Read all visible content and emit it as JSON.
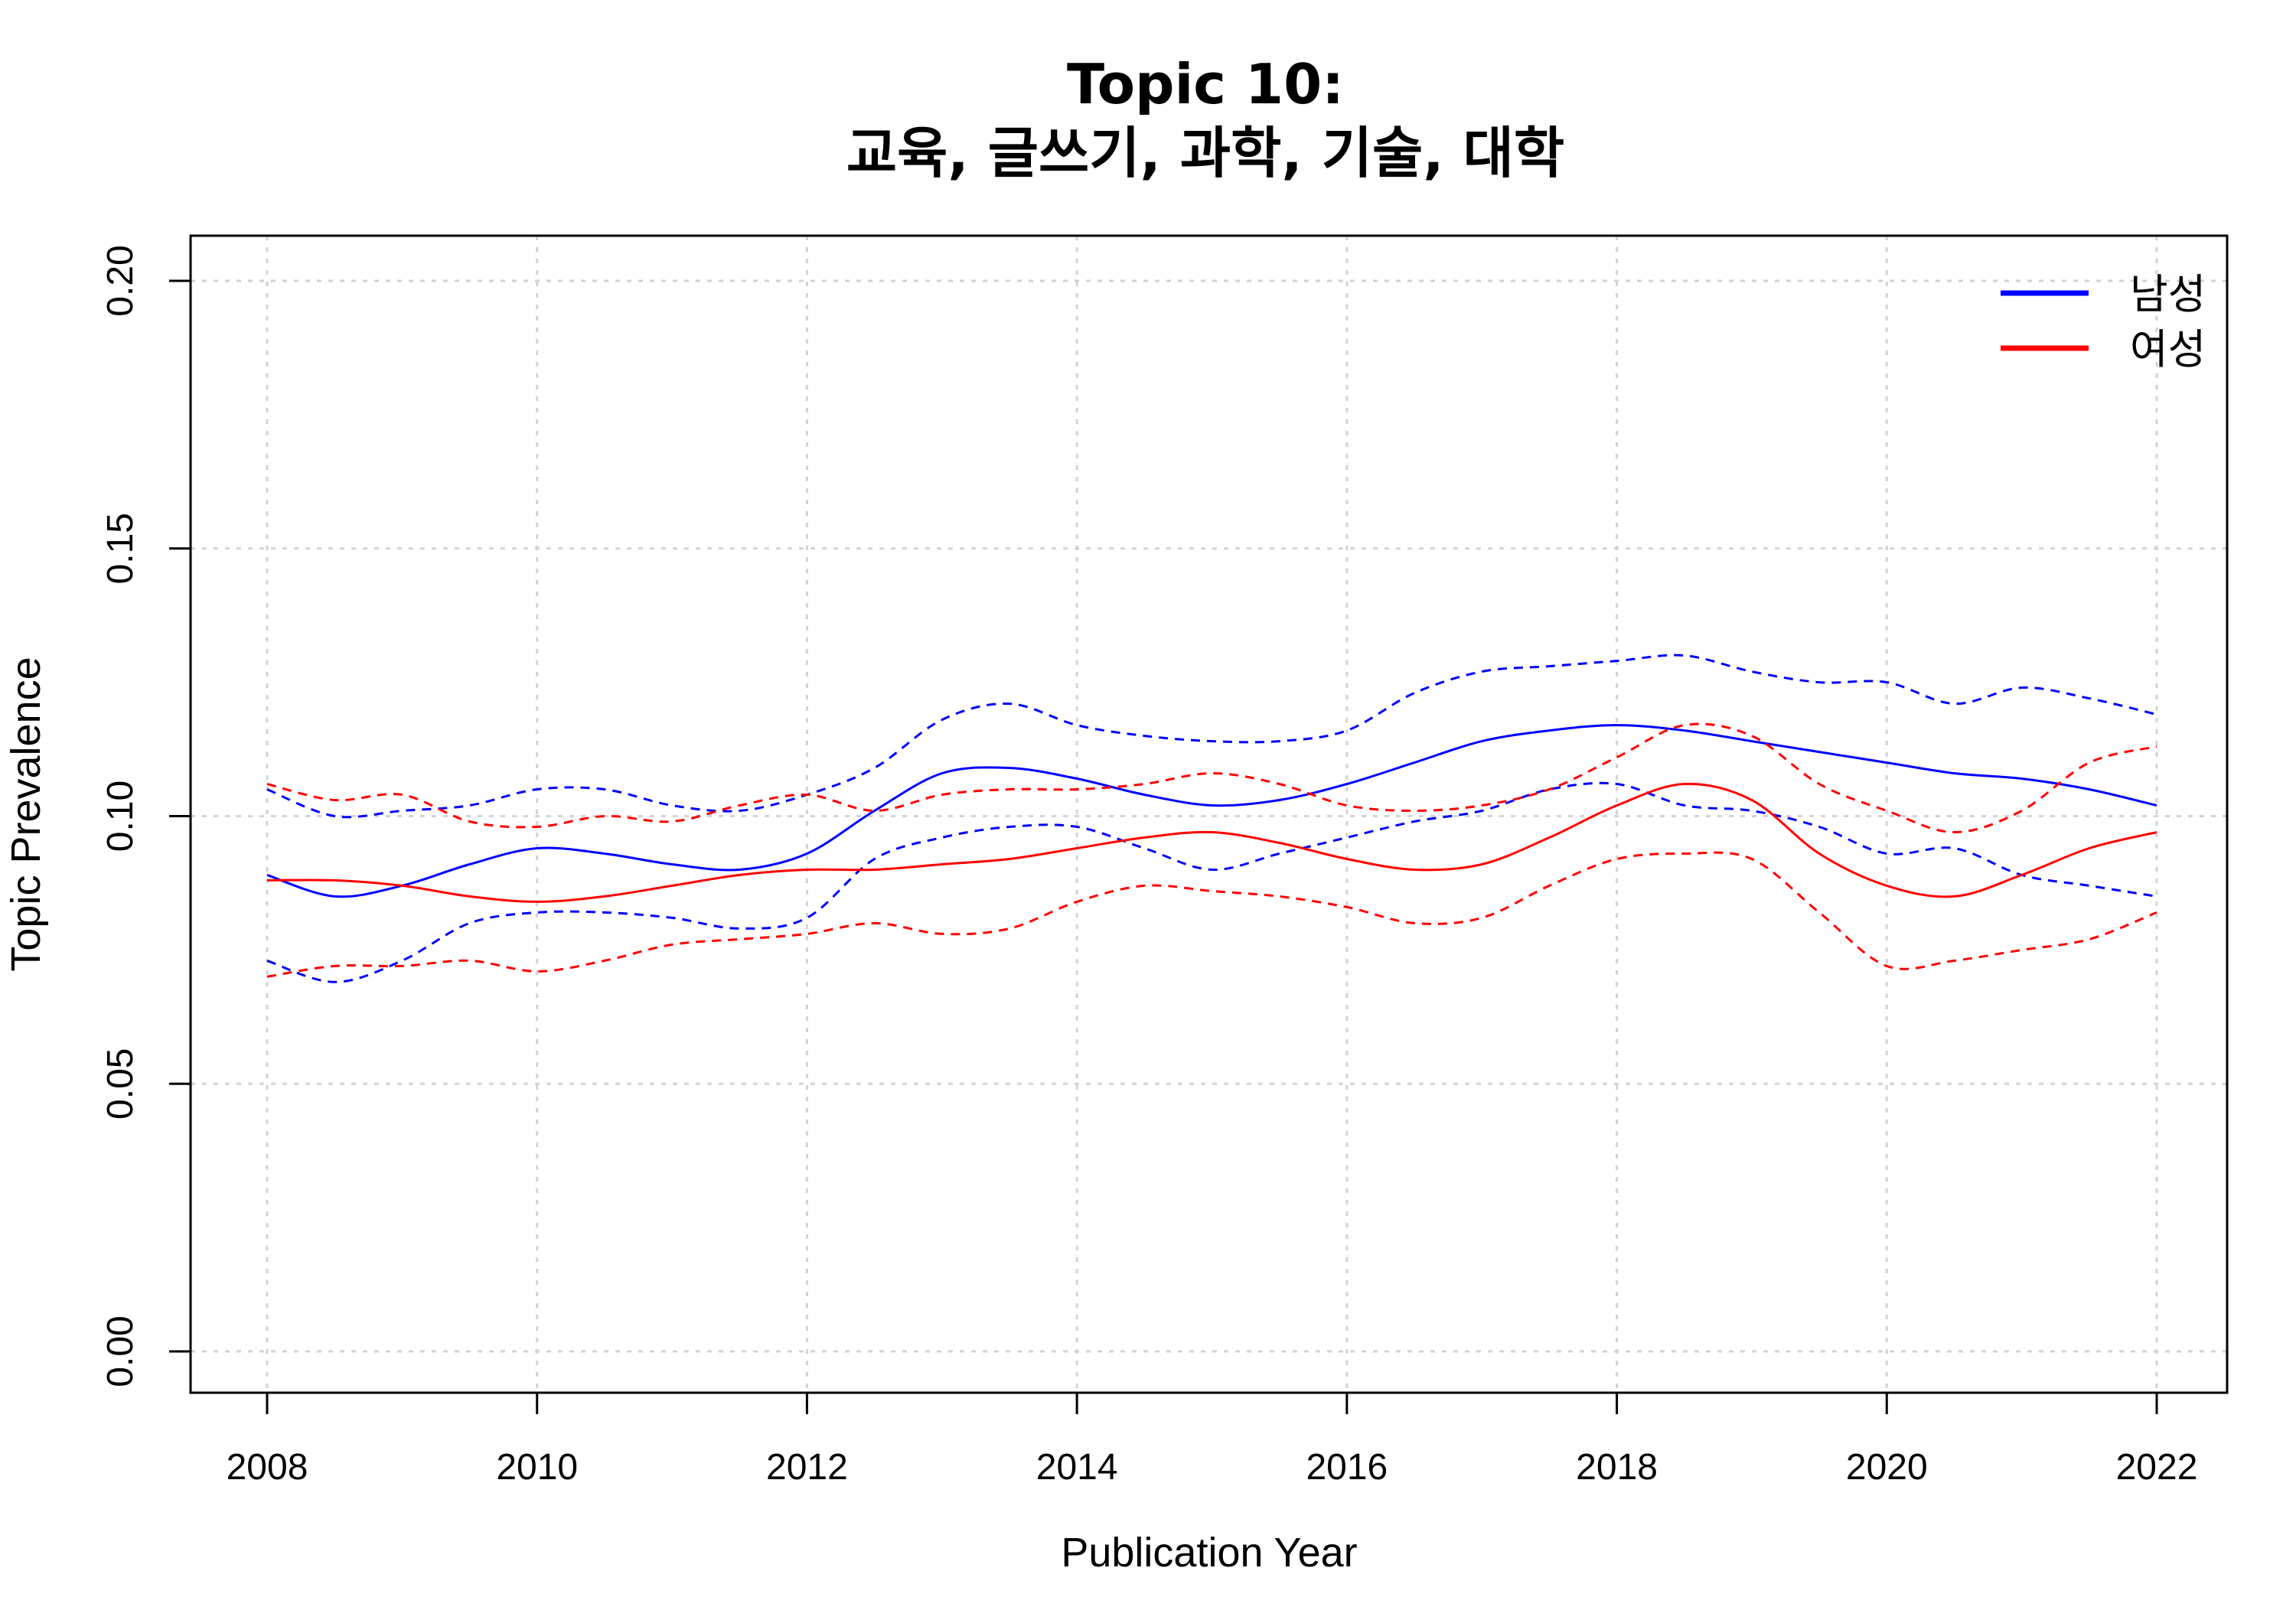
{
  "chart_data": {
    "type": "line",
    "title": "Topic 10:",
    "subtitle": "교육, 글쓰기, 과학, 기술, 대학",
    "xlabel": "Publication Year",
    "ylabel": "Topic Prevalence",
    "xlim": [
      2008,
      2022
    ],
    "ylim": [
      0,
      0.2
    ],
    "xticks": [
      "2008",
      "2010",
      "2012",
      "2014",
      "2016",
      "2018",
      "2020",
      "2022"
    ],
    "yticks": [
      "0.00",
      "0.05",
      "0.10",
      "0.15",
      "0.20"
    ],
    "grid": true,
    "legend_position": "top-right",
    "x": [
      2008.0,
      2008.5,
      2009.0,
      2009.5,
      2010.0,
      2010.5,
      2011.0,
      2011.5,
      2012.0,
      2012.5,
      2013.0,
      2013.5,
      2014.0,
      2014.5,
      2015.0,
      2015.5,
      2016.0,
      2016.5,
      2017.0,
      2017.5,
      2018.0,
      2018.5,
      2019.0,
      2019.5,
      2020.0,
      2020.5,
      2021.0,
      2021.5,
      2022.0
    ],
    "series": [
      {
        "name": "남성",
        "color": "#0000ff",
        "style": "solid",
        "values": [
          0.089,
          0.085,
          0.087,
          0.091,
          0.094,
          0.093,
          0.091,
          0.09,
          0.093,
          0.101,
          0.108,
          0.109,
          0.107,
          0.104,
          0.102,
          0.103,
          0.106,
          0.11,
          0.114,
          0.116,
          0.117,
          0.116,
          0.114,
          0.112,
          0.11,
          0.108,
          0.107,
          0.105,
          0.102
        ]
      },
      {
        "name": "남성 upper",
        "color": "#0000ff",
        "style": "dashed",
        "values": [
          0.105,
          0.1,
          0.101,
          0.102,
          0.105,
          0.105,
          0.102,
          0.101,
          0.104,
          0.109,
          0.118,
          0.121,
          0.117,
          0.115,
          0.114,
          0.114,
          0.116,
          0.123,
          0.127,
          0.128,
          0.129,
          0.13,
          0.127,
          0.125,
          0.125,
          0.121,
          0.124,
          0.122,
          0.119
        ]
      },
      {
        "name": "남성 lower",
        "color": "#0000ff",
        "style": "dashed",
        "values": [
          0.073,
          0.069,
          0.073,
          0.08,
          0.082,
          0.082,
          0.081,
          0.079,
          0.081,
          0.092,
          0.096,
          0.098,
          0.098,
          0.094,
          0.09,
          0.093,
          0.096,
          0.099,
          0.101,
          0.105,
          0.106,
          0.102,
          0.101,
          0.098,
          0.093,
          0.094,
          0.089,
          0.087,
          0.085
        ]
      },
      {
        "name": "여성",
        "color": "#ff0000",
        "style": "solid",
        "values": [
          0.088,
          0.088,
          0.087,
          0.085,
          0.084,
          0.085,
          0.087,
          0.089,
          0.09,
          0.09,
          0.091,
          0.092,
          0.094,
          0.096,
          0.097,
          0.095,
          0.092,
          0.09,
          0.091,
          0.096,
          0.102,
          0.106,
          0.103,
          0.093,
          0.087,
          0.085,
          0.089,
          0.094,
          0.097
        ]
      },
      {
        "name": "여성 upper",
        "color": "#ff0000",
        "style": "dashed",
        "values": [
          0.106,
          0.103,
          0.104,
          0.099,
          0.098,
          0.1,
          0.099,
          0.102,
          0.104,
          0.101,
          0.104,
          0.105,
          0.105,
          0.106,
          0.108,
          0.106,
          0.102,
          0.101,
          0.102,
          0.105,
          0.111,
          0.117,
          0.115,
          0.106,
          0.101,
          0.097,
          0.101,
          0.11,
          0.113
        ]
      },
      {
        "name": "여성 lower",
        "color": "#ff0000",
        "style": "dashed",
        "values": [
          0.07,
          0.072,
          0.072,
          0.073,
          0.071,
          0.073,
          0.076,
          0.077,
          0.078,
          0.08,
          0.078,
          0.079,
          0.084,
          0.087,
          0.086,
          0.085,
          0.083,
          0.08,
          0.081,
          0.087,
          0.092,
          0.093,
          0.092,
          0.082,
          0.072,
          0.073,
          0.075,
          0.077,
          0.082
        ]
      }
    ],
    "legend": [
      {
        "label": "남성",
        "color": "#0000ff"
      },
      {
        "label": "여성",
        "color": "#ff0000"
      }
    ]
  }
}
